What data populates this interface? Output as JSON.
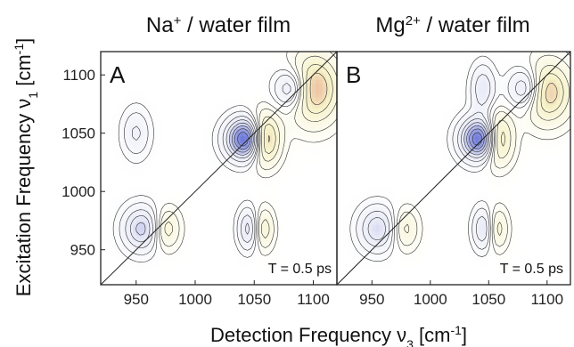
{
  "chart_data": [
    {
      "type": "heatmap",
      "panel_letter": "A",
      "title_base": "Na",
      "title_sup": "+",
      "title_rest": " / water film",
      "annotation": "T = 0.5 ps",
      "xlim": [
        920,
        1120
      ],
      "ylim": [
        920,
        1120
      ],
      "x_ticks": [
        "950",
        "1000",
        "1050",
        "1100"
      ],
      "y_ticks": [
        "950",
        "1000",
        "1050",
        "1100"
      ],
      "peaks": [
        {
          "x": 1045,
          "y": 1045,
          "amp": -1.0,
          "sx": 12,
          "sy": 12
        },
        {
          "x": 1058,
          "y": 1045,
          "amp": 0.85,
          "sx": 9,
          "sy": 14
        },
        {
          "x": 1100,
          "y": 1088,
          "amp": 0.55,
          "sx": 15,
          "sy": 20
        },
        {
          "x": 1082,
          "y": 1088,
          "amp": -0.45,
          "sx": 10,
          "sy": 12
        },
        {
          "x": 955,
          "y": 968,
          "amp": -0.45,
          "sx": 11,
          "sy": 13
        },
        {
          "x": 975,
          "y": 968,
          "amp": 0.3,
          "sx": 8,
          "sy": 12
        },
        {
          "x": 1045,
          "y": 968,
          "amp": -0.35,
          "sx": 6,
          "sy": 12
        },
        {
          "x": 1058,
          "y": 968,
          "amp": 0.28,
          "sx": 6,
          "sy": 12
        },
        {
          "x": 950,
          "y": 1050,
          "amp": -0.22,
          "sx": 8,
          "sy": 14
        }
      ]
    },
    {
      "type": "heatmap",
      "panel_letter": "B",
      "title_base": "Mg",
      "title_sup": "2+",
      "title_rest": " / water film",
      "annotation": "T = 0.5 ps",
      "xlim": [
        920,
        1120
      ],
      "ylim": [
        920,
        1120
      ],
      "x_ticks": [
        "950",
        "1000",
        "1050",
        "1100"
      ],
      "y_ticks": [],
      "peaks": [
        {
          "x": 1045,
          "y": 1045,
          "amp": -1.0,
          "sx": 12,
          "sy": 12
        },
        {
          "x": 1057,
          "y": 1045,
          "amp": 0.8,
          "sx": 9,
          "sy": 14
        },
        {
          "x": 1100,
          "y": 1085,
          "amp": 0.5,
          "sx": 14,
          "sy": 18
        },
        {
          "x": 1082,
          "y": 1088,
          "amp": -0.42,
          "sx": 10,
          "sy": 12
        },
        {
          "x": 955,
          "y": 968,
          "amp": -0.4,
          "sx": 11,
          "sy": 13
        },
        {
          "x": 978,
          "y": 968,
          "amp": 0.25,
          "sx": 8,
          "sy": 12
        },
        {
          "x": 1045,
          "y": 968,
          "amp": -0.32,
          "sx": 6,
          "sy": 12
        },
        {
          "x": 1058,
          "y": 968,
          "amp": 0.25,
          "sx": 6,
          "sy": 12
        },
        {
          "x": 1045,
          "y": 1088,
          "amp": -0.3,
          "sx": 7,
          "sy": 14
        }
      ]
    }
  ],
  "xlabel_base": "Detection Frequency  ν",
  "xlabel_sub": "3",
  "xlabel_unit": "  [cm",
  "xlabel_sup": "-1",
  "xlabel_close": "]",
  "ylabel_base": "Excitation Frequency  ν",
  "ylabel_sub": "1",
  "ylabel_unit": "  [cm",
  "ylabel_sup": "-1",
  "ylabel_close": "]",
  "colors": {
    "negative": "#3344cc",
    "positive": "#cc2222",
    "midlow": "#e6e8f6",
    "midhigh": "#f6f2c8",
    "contour": "#333333"
  }
}
